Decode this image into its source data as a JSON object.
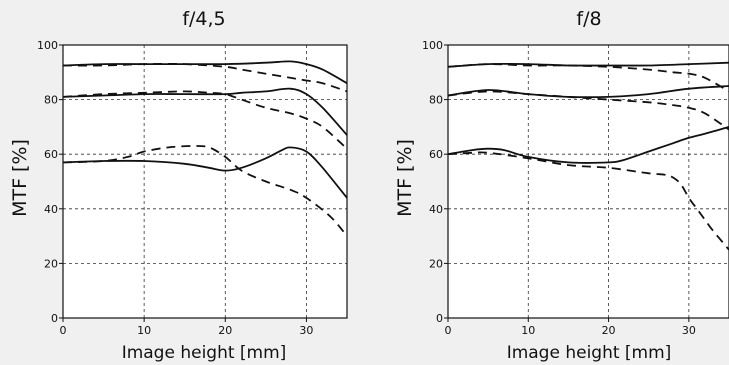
{
  "chart_data": [
    {
      "type": "line",
      "title": "f/4,5",
      "xlabel": "Image height [mm]",
      "ylabel": "MTF [%]",
      "xlim": [
        0,
        35
      ],
      "ylim": [
        0,
        100
      ],
      "xticks": [
        "0",
        "10",
        "20",
        "30"
      ],
      "yticks": [
        "0",
        "20",
        "40",
        "60",
        "80",
        "100"
      ],
      "grid": true,
      "series": [
        {
          "style": "solid",
          "x": [
            0,
            5,
            10,
            15,
            20,
            25,
            28,
            30,
            32,
            35
          ],
          "y": [
            92.5,
            93,
            93,
            93,
            93,
            93.5,
            94,
            93,
            91,
            86
          ]
        },
        {
          "style": "dashed",
          "x": [
            0,
            5,
            10,
            15,
            20,
            22,
            25,
            28,
            30,
            32,
            35
          ],
          "y": [
            92.5,
            92.5,
            93,
            93,
            92,
            91,
            89.5,
            88,
            87,
            86,
            83
          ]
        },
        {
          "style": "solid",
          "x": [
            0,
            5,
            10,
            15,
            20,
            22,
            25,
            28,
            30,
            32,
            35
          ],
          "y": [
            81,
            81.5,
            82,
            82,
            82,
            82.5,
            83,
            84,
            82,
            77,
            67
          ]
        },
        {
          "style": "dashed",
          "x": [
            0,
            5,
            10,
            15,
            18,
            20,
            22,
            25,
            28,
            30,
            32,
            35
          ],
          "y": [
            81,
            82,
            82.5,
            83,
            82.5,
            82,
            80,
            77,
            75,
            73,
            70,
            62
          ]
        },
        {
          "style": "solid",
          "x": [
            0,
            5,
            10,
            15,
            18,
            20,
            22,
            25,
            27,
            28,
            30,
            32,
            35
          ],
          "y": [
            57,
            57.5,
            57.5,
            56.5,
            55,
            54,
            55,
            58.5,
            61.5,
            62.5,
            61,
            55,
            44
          ]
        },
        {
          "style": "dashed",
          "x": [
            0,
            5,
            8,
            10,
            13,
            16,
            18,
            20,
            22,
            25,
            28,
            30,
            33,
            35
          ],
          "y": [
            57,
            57.5,
            59,
            61,
            62.5,
            63,
            62.5,
            59,
            54,
            50,
            47,
            44,
            37,
            30
          ]
        }
      ]
    },
    {
      "type": "line",
      "title": "f/8",
      "xlabel": "Image height [mm]",
      "ylabel": "MTF [%]",
      "xlim": [
        0,
        35
      ],
      "ylim": [
        0,
        100
      ],
      "xticks": [
        "0",
        "10",
        "20",
        "30"
      ],
      "yticks": [
        "0",
        "20",
        "40",
        "60",
        "80",
        "100"
      ],
      "grid": true,
      "series": [
        {
          "style": "solid",
          "x": [
            0,
            5,
            10,
            15,
            20,
            25,
            30,
            35
          ],
          "y": [
            92,
            93,
            93,
            92.5,
            92.5,
            92.5,
            93,
            93.5
          ]
        },
        {
          "style": "dashed",
          "x": [
            0,
            5,
            10,
            15,
            20,
            25,
            28,
            30,
            32,
            35
          ],
          "y": [
            92,
            93,
            92.5,
            92.5,
            92,
            91,
            90,
            89.5,
            88,
            83
          ]
        },
        {
          "style": "solid",
          "x": [
            0,
            5,
            10,
            15,
            20,
            25,
            30,
            35
          ],
          "y": [
            81.5,
            83.5,
            82,
            81,
            81,
            82,
            84,
            85
          ]
        },
        {
          "style": "dashed",
          "x": [
            0,
            5,
            10,
            15,
            20,
            25,
            28,
            30,
            32,
            35
          ],
          "y": [
            81.5,
            83,
            82,
            81,
            80,
            79,
            78,
            77,
            75,
            69
          ]
        },
        {
          "style": "solid",
          "x": [
            0,
            3,
            5,
            7,
            10,
            15,
            20,
            22,
            25,
            28,
            30,
            32,
            35
          ],
          "y": [
            60,
            61.5,
            62,
            61.5,
            59,
            57,
            57,
            58,
            61,
            64,
            66,
            67.5,
            70
          ]
        },
        {
          "style": "dashed",
          "x": [
            0,
            3,
            5,
            10,
            15,
            20,
            25,
            27,
            28,
            29,
            30,
            31,
            32,
            33,
            35
          ],
          "y": [
            60,
            60.5,
            60.5,
            58.5,
            56,
            55,
            53,
            52.5,
            51.5,
            49,
            44,
            40,
            36,
            32,
            25
          ]
        }
      ]
    }
  ]
}
